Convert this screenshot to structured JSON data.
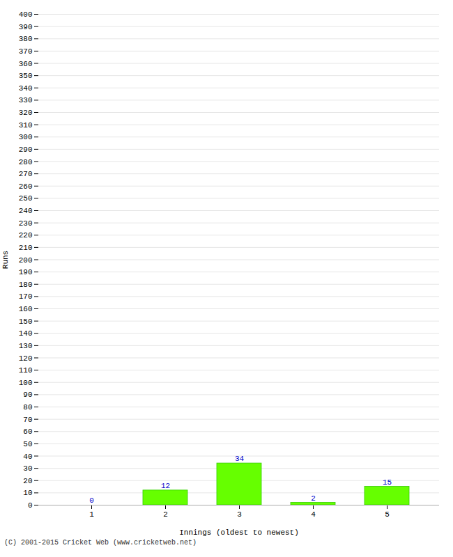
{
  "chart_data": {
    "type": "bar",
    "categories": [
      1,
      2,
      3,
      4,
      5
    ],
    "values": [
      0,
      12,
      34,
      2,
      15
    ],
    "color": "#66ff00",
    "xlabel": "Innings (oldest to newest)",
    "ylabel": "Runs",
    "ylim": [
      0,
      400
    ],
    "yticks": [
      0,
      10,
      20,
      30,
      40,
      50,
      60,
      70,
      80,
      90,
      100,
      110,
      120,
      130,
      140,
      150,
      160,
      170,
      180,
      190,
      200,
      210,
      220,
      230,
      240,
      250,
      260,
      270,
      280,
      290,
      300,
      310,
      320,
      330,
      340,
      350,
      360,
      370,
      380,
      390,
      400
    ],
    "grid": true,
    "data_labels": true,
    "annotations": [
      "(C) 2001-2015 Cricket Web (www.cricketweb.net)"
    ]
  }
}
